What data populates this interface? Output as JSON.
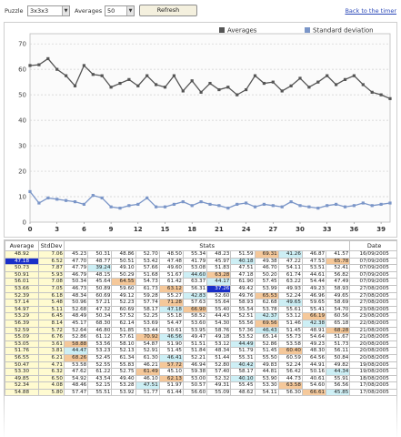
{
  "toolbar": {
    "puzzle_label": "Puzzle",
    "puzzle_value": "3x3x3",
    "averages_label": "Averages",
    "averages_value": "50",
    "refresh_label": "Refresh",
    "back_link": "Back to the timer"
  },
  "chart_data": {
    "type": "line",
    "x": [
      0,
      1,
      2,
      3,
      4,
      5,
      6,
      7,
      8,
      9,
      10,
      11,
      12,
      13,
      14,
      15,
      16,
      17,
      18,
      19,
      20,
      21,
      22,
      23,
      24,
      25,
      26,
      27,
      28,
      29,
      30,
      31,
      32,
      33,
      34,
      35,
      36,
      37,
      38,
      39,
      40
    ],
    "xticks": [
      "0",
      "3",
      "6",
      "9",
      "12",
      "15",
      "18",
      "21",
      "24",
      "27",
      "30",
      "33",
      "36",
      "39"
    ],
    "yticks": [
      "0",
      "10",
      "20",
      "30",
      "40",
      "50",
      "60",
      "70"
    ],
    "ylim": [
      0,
      74
    ],
    "xlim": [
      0,
      40
    ],
    "legend_placement": "top-right",
    "grid": true,
    "series": [
      {
        "name": "Averages",
        "color": "#555555",
        "values": [
          61.5,
          61.8,
          64.2,
          60,
          57.5,
          53.5,
          61.5,
          58,
          57.5,
          53,
          54.5,
          56,
          53.5,
          57.5,
          54,
          53,
          57.5,
          51.5,
          55.5,
          51,
          54.5,
          52,
          53,
          50,
          52,
          57.5,
          54.5,
          55,
          51.5,
          53.5,
          56.5,
          53,
          55,
          57.5,
          54,
          56,
          57.5,
          54,
          51,
          50,
          48.5
        ]
      },
      {
        "name": "Standard deviation",
        "color": "#7b96c8",
        "values": [
          12,
          7.5,
          9.5,
          9,
          8.5,
          8,
          7,
          10.5,
          9.5,
          6,
          5.5,
          6.5,
          7,
          9.5,
          6,
          6,
          7,
          8,
          6.5,
          8,
          7,
          6.5,
          5.5,
          7,
          7.5,
          6,
          7,
          6.5,
          6,
          8,
          6.5,
          6,
          5.5,
          6.5,
          7,
          6,
          6.5,
          7.5,
          6.5,
          7,
          7.5
        ]
      }
    ]
  },
  "table": {
    "headers": {
      "average": "Average",
      "stddev": "StdDev",
      "stats": "Stats",
      "date": "Date"
    },
    "colors": {
      "blue_sel": "#1a2fc8",
      "yellow": "#fffbd0",
      "orange": "#f5c89a",
      "cyan": "#cdeff5",
      "darkblue": "#1a2fc8"
    },
    "rows": [
      {
        "avg": "48.92",
        "sd": "7.06",
        "stats": [
          "45.23",
          "50.31",
          "48.86",
          "52.70",
          "48.50",
          "55.34",
          "48.23",
          "51.59",
          "69.31",
          "41.26",
          "46.87",
          "41.57"
        ],
        "date": "16/09/2005",
        "hi": {
          "8": "orange",
          "9": "cyan"
        }
      },
      {
        "avg": "47.18",
        "sd": "6.52",
        "stats": [
          "47.70",
          "48.77",
          "50.51",
          "53.42",
          "47.48",
          "41.79",
          "45.97",
          "40.18",
          "49.38",
          "47.22",
          "47.53",
          "65.78"
        ],
        "date": "07/09/2005",
        "sel": true,
        "hi": {
          "7": "cyan",
          "11": "orange"
        }
      },
      {
        "avg": "50.73",
        "sd": "7.87",
        "stats": [
          "47.79",
          "39.24",
          "49.10",
          "57.66",
          "49.60",
          "53.08",
          "51.83",
          "47.51",
          "46.70",
          "54.11",
          "53.51",
          "52.41"
        ],
        "date": "07/09/2005",
        "hi": {
          "1": "cyan"
        }
      },
      {
        "avg": "50.91",
        "sd": "5.93",
        "stats": [
          "46.79",
          "48.15",
          "50.29",
          "51.68",
          "51.67",
          "44.60",
          "63.28",
          "47.18",
          "50.20",
          "61.74",
          "44.61",
          "56.82"
        ],
        "date": "07/09/2005",
        "hi": {
          "5": "cyan",
          "6": "orange"
        }
      },
      {
        "avg": "56.01",
        "sd": "7.08",
        "stats": [
          "50.34",
          "45.64",
          "64.55",
          "54.73",
          "61.42",
          "63.37",
          "44.17",
          "61.90",
          "57.45",
          "63.22",
          "54.44",
          "47.49"
        ],
        "date": "07/09/2005",
        "hi": {
          "2": "orange",
          "6": "cyan"
        }
      },
      {
        "avg": "53.66",
        "sd": "7.05",
        "stats": [
          "46.73",
          "50.89",
          "59.60",
          "61.73",
          "63.12",
          "56.31",
          "37.26",
          "49.42",
          "53.99",
          "49.93",
          "49.23",
          "58.93"
        ],
        "date": "27/08/2005",
        "hi": {
          "4": "orange",
          "6": "darkblue"
        }
      },
      {
        "avg": "52.39",
        "sd": "6.18",
        "stats": [
          "48.34",
          "60.69",
          "49.12",
          "59.28",
          "55.27",
          "42.83",
          "52.60",
          "49.76",
          "65.53",
          "52.24",
          "46.96",
          "49.65"
        ],
        "date": "27/08/2005",
        "hi": {
          "5": "cyan",
          "8": "orange"
        }
      },
      {
        "avg": "57.14",
        "sd": "5.48",
        "stats": [
          "50.96",
          "57.21",
          "52.23",
          "57.74",
          "71.28",
          "57.63",
          "55.64",
          "58.93",
          "62.68",
          "49.65",
          "59.65",
          "58.69"
        ],
        "date": "27/08/2005",
        "hi": {
          "4": "orange",
          "9": "cyan"
        }
      },
      {
        "avg": "54.97",
        "sd": "5.11",
        "stats": [
          "52.68",
          "47.32",
          "60.69",
          "58.17",
          "47.18",
          "66.90",
          "55.40",
          "55.54",
          "53.78",
          "55.61",
          "55.41",
          "54.70"
        ],
        "date": "23/08/2005",
        "hi": {
          "4": "cyan",
          "5": "orange"
        }
      },
      {
        "avg": "53.29",
        "sd": "6.45",
        "stats": [
          "48.49",
          "50.34",
          "57.52",
          "52.25",
          "55.18",
          "58.52",
          "44.43",
          "52.51",
          "42.37",
          "53.12",
          "66.19",
          "60.56"
        ],
        "date": "23/08/2005",
        "hi": {
          "8": "cyan",
          "10": "orange"
        }
      },
      {
        "avg": "56.39",
        "sd": "8.14",
        "stats": [
          "45.17",
          "68.30",
          "62.14",
          "53.69",
          "54.47",
          "53.60",
          "54.30",
          "55.56",
          "69.56",
          "51.46",
          "42.38",
          "65.18"
        ],
        "date": "22/08/2005",
        "hi": {
          "8": "orange",
          "10": "cyan"
        }
      },
      {
        "avg": "52.59",
        "sd": "5.72",
        "stats": [
          "52.64",
          "46.80",
          "51.85",
          "53.44",
          "50.61",
          "53.95",
          "58.76",
          "57.36",
          "46.43",
          "51.45",
          "48.91",
          "68.28"
        ],
        "date": "21/08/2005",
        "hi": {
          "8": "cyan",
          "11": "orange"
        }
      },
      {
        "avg": "55.09",
        "sd": "6.76",
        "stats": [
          "52.86",
          "61.12",
          "57.61",
          "70.92",
          "46.56",
          "49.47",
          "49.18",
          "53.52",
          "65.14",
          "55.73",
          "54.64",
          "51.67"
        ],
        "date": "21/08/2005",
        "hi": {
          "3": "orange",
          "4": "cyan"
        }
      },
      {
        "avg": "53.05",
        "sd": "3.61",
        "stats": [
          "58.88",
          "53.56",
          "58.10",
          "54.87",
          "51.90",
          "51.51",
          "53.12",
          "44.49",
          "52.86",
          "53.58",
          "49.23",
          "51.73"
        ],
        "date": "20/08/2005",
        "hi": {
          "0": "orange",
          "7": "cyan"
        }
      },
      {
        "avg": "51.76",
        "sd": "3.81",
        "stats": [
          "44.47",
          "53.23",
          "52.13",
          "52.91",
          "51.45",
          "51.84",
          "48.34",
          "51.79",
          "51.45",
          "60.40",
          "48.30",
          "56.11"
        ],
        "date": "20/08/2005",
        "hi": {
          "0": "cyan",
          "9": "orange"
        }
      },
      {
        "avg": "56.55",
        "sd": "6.21",
        "stats": [
          "68.26",
          "52.45",
          "61.34",
          "61.30",
          "46.41",
          "52.21",
          "51.44",
          "55.31",
          "55.50",
          "60.59",
          "64.56",
          "50.84"
        ],
        "date": "20/08/2005",
        "hi": {
          "0": "orange",
          "4": "cyan"
        }
      },
      {
        "avg": "50.47",
        "sd": "4.71",
        "stats": [
          "53.58",
          "52.55",
          "55.83",
          "46.21",
          "57.72",
          "46.94",
          "52.80",
          "40.42",
          "49.83",
          "52.24",
          "44.91",
          "49.82"
        ],
        "date": "19/08/2005",
        "hi": {
          "4": "orange",
          "7": "cyan"
        }
      },
      {
        "avg": "53.30",
        "sd": "6.32",
        "stats": [
          "47.62",
          "61.22",
          "52.75",
          "61.49",
          "45.10",
          "59.38",
          "57.40",
          "58.17",
          "44.81",
          "56.42",
          "50.16",
          "44.34"
        ],
        "date": "19/08/2005",
        "hi": {
          "3": "orange",
          "11": "cyan"
        }
      },
      {
        "avg": "49.85",
        "sd": "6.50",
        "stats": [
          "54.92",
          "43.54",
          "49.40",
          "46.10",
          "62.13",
          "53.00",
          "52.32",
          "40.10",
          "53.90",
          "44.73",
          "40.61",
          "55.91"
        ],
        "date": "18/08/2005",
        "hi": {
          "4": "orange",
          "7": "cyan"
        }
      },
      {
        "avg": "52.34",
        "sd": "4.08",
        "stats": [
          "48.46",
          "52.15",
          "53.28",
          "47.51",
          "51.97",
          "50.57",
          "49.31",
          "55.45",
          "53.30",
          "63.58",
          "54.60",
          "56.56"
        ],
        "date": "17/08/2005",
        "hi": {
          "3": "cyan",
          "9": "orange"
        }
      },
      {
        "avg": "54.88",
        "sd": "5.80",
        "stats": [
          "57.47",
          "55.51",
          "53.92",
          "51.77",
          "61.44",
          "56.60",
          "55.09",
          "48.62",
          "54.11",
          "56.30",
          "66.61",
          "45.85"
        ],
        "date": "17/08/2005",
        "hi": {
          "10": "orange",
          "11": "cyan"
        }
      }
    ]
  }
}
